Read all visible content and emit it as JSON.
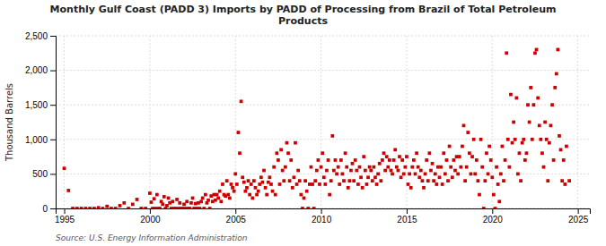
{
  "chart_data": {
    "type": "scatter",
    "title": "Monthly Gulf Coast (PADD 3) Imports by PADD of Processing from Brazil of Total Petroleum\nProducts",
    "ylabel": "Thousand Barrels",
    "annotations": [
      "Source: U.S. Energy Information Administration"
    ],
    "color": "#cc0000",
    "marker": "square",
    "grid": true,
    "xlim": [
      1994.5,
      2025.7
    ],
    "xticks": [
      1995,
      2000,
      2005,
      2010,
      2015,
      2020,
      2025
    ],
    "ylim": [
      0,
      2500
    ],
    "yticks": [
      0,
      500,
      {
        "value": 1000,
        "label": "1,000"
      },
      {
        "value": 1500,
        "label": "1,500"
      },
      {
        "value": 2000,
        "label": "2,000"
      },
      {
        "value": 2500,
        "label": "2,500"
      }
    ],
    "x": [
      1995.0,
      1995.25,
      1995.5,
      1995.75,
      1996.0,
      1996.25,
      1996.5,
      1996.75,
      1997.0,
      1997.25,
      1997.5,
      1997.75,
      1998.0,
      1998.25,
      1998.5,
      1998.75,
      1999.0,
      1999.25,
      1999.5,
      1999.75,
      2000.0,
      2000.083,
      2000.167,
      2000.25,
      2000.333,
      2000.417,
      2000.5,
      2000.583,
      2000.667,
      2000.75,
      2000.833,
      2000.917,
      2001.0,
      2001.083,
      2001.167,
      2001.25,
      2001.333,
      2001.417,
      2001.5,
      2001.583,
      2001.667,
      2001.75,
      2001.833,
      2001.917,
      2002.0,
      2002.083,
      2002.167,
      2002.25,
      2002.333,
      2002.417,
      2002.5,
      2002.583,
      2002.667,
      2002.75,
      2002.833,
      2002.917,
      2003.0,
      2003.083,
      2003.167,
      2003.25,
      2003.333,
      2003.417,
      2003.5,
      2003.583,
      2003.667,
      2003.75,
      2003.833,
      2003.917,
      2004.0,
      2004.083,
      2004.167,
      2004.25,
      2004.333,
      2004.417,
      2004.5,
      2004.583,
      2004.667,
      2004.75,
      2004.833,
      2004.917,
      2005.0,
      2005.083,
      2005.167,
      2005.25,
      2005.333,
      2005.417,
      2005.5,
      2005.583,
      2005.667,
      2005.75,
      2005.833,
      2005.917,
      2006.0,
      2006.083,
      2006.167,
      2006.25,
      2006.333,
      2006.417,
      2006.5,
      2006.583,
      2006.667,
      2006.75,
      2006.833,
      2006.917,
      2007.0,
      2007.083,
      2007.167,
      2007.25,
      2007.333,
      2007.417,
      2007.5,
      2007.583,
      2007.667,
      2007.75,
      2007.833,
      2007.917,
      2008.0,
      2008.083,
      2008.167,
      2008.25,
      2008.333,
      2008.417,
      2008.5,
      2008.583,
      2008.667,
      2008.75,
      2008.833,
      2008.917,
      2009.0,
      2009.083,
      2009.167,
      2009.25,
      2009.333,
      2009.417,
      2009.5,
      2009.583,
      2009.667,
      2009.75,
      2009.833,
      2009.917,
      2010.0,
      2010.083,
      2010.167,
      2010.25,
      2010.333,
      2010.417,
      2010.5,
      2010.583,
      2010.667,
      2010.75,
      2010.833,
      2010.917,
      2011.0,
      2011.083,
      2011.167,
      2011.25,
      2011.333,
      2011.417,
      2011.5,
      2011.583,
      2011.667,
      2011.75,
      2011.833,
      2011.917,
      2012.0,
      2012.083,
      2012.167,
      2012.25,
      2012.333,
      2012.417,
      2012.5,
      2012.583,
      2012.667,
      2012.75,
      2012.833,
      2012.917,
      2013.0,
      2013.083,
      2013.167,
      2013.25,
      2013.333,
      2013.417,
      2013.5,
      2013.583,
      2013.667,
      2013.75,
      2013.833,
      2013.917,
      2014.0,
      2014.083,
      2014.167,
      2014.25,
      2014.333,
      2014.417,
      2014.5,
      2014.583,
      2014.667,
      2014.75,
      2014.833,
      2014.917,
      2015.0,
      2015.083,
      2015.167,
      2015.25,
      2015.333,
      2015.417,
      2015.5,
      2015.583,
      2015.667,
      2015.75,
      2015.833,
      2015.917,
      2016.0,
      2016.083,
      2016.167,
      2016.25,
      2016.333,
      2016.417,
      2016.5,
      2016.583,
      2016.667,
      2016.75,
      2016.833,
      2016.917,
      2017.0,
      2017.083,
      2017.167,
      2017.25,
      2017.333,
      2017.417,
      2017.5,
      2017.583,
      2017.667,
      2017.75,
      2017.833,
      2017.917,
      2018.0,
      2018.083,
      2018.167,
      2018.25,
      2018.333,
      2018.417,
      2018.5,
      2018.583,
      2018.667,
      2018.75,
      2018.833,
      2018.917,
      2019.0,
      2019.083,
      2019.167,
      2019.25,
      2019.333,
      2019.417,
      2019.5,
      2019.583,
      2019.667,
      2019.75,
      2019.833,
      2019.917,
      2020.0,
      2020.083,
      2020.167,
      2020.25,
      2020.333,
      2020.417,
      2020.5,
      2020.583,
      2020.667,
      2020.75,
      2020.833,
      2020.917,
      2021.0,
      2021.083,
      2021.167,
      2021.25,
      2021.333,
      2021.417,
      2021.5,
      2021.583,
      2021.667,
      2021.75,
      2021.833,
      2021.917,
      2022.0,
      2022.083,
      2022.167,
      2022.25,
      2022.333,
      2022.417,
      2022.5,
      2022.583,
      2022.667,
      2022.75,
      2022.833,
      2022.917,
      2023.0,
      2023.083,
      2023.167,
      2023.25,
      2023.333,
      2023.417,
      2023.5,
      2023.583,
      2023.667,
      2023.75,
      2023.833,
      2023.917,
      2024.0,
      2024.083,
      2024.167,
      2024.25,
      2024.333,
      2024.5
    ],
    "values": [
      580,
      260,
      0,
      0,
      0,
      0,
      0,
      0,
      10,
      0,
      30,
      0,
      0,
      40,
      80,
      0,
      60,
      130,
      0,
      0,
      220,
      90,
      0,
      140,
      0,
      200,
      0,
      0,
      100,
      60,
      170,
      0,
      40,
      150,
      80,
      0,
      100,
      0,
      0,
      130,
      0,
      80,
      0,
      0,
      60,
      0,
      100,
      0,
      0,
      80,
      150,
      0,
      70,
      0,
      80,
      0,
      100,
      150,
      0,
      200,
      80,
      120,
      0,
      180,
      100,
      200,
      120,
      200,
      150,
      250,
      100,
      350,
      200,
      180,
      400,
      200,
      150,
      350,
      300,
      250,
      500,
      350,
      1100,
      800,
      1550,
      450,
      380,
      250,
      300,
      400,
      200,
      350,
      150,
      400,
      300,
      200,
      250,
      350,
      450,
      380,
      550,
      300,
      200,
      380,
      450,
      350,
      250,
      600,
      200,
      800,
      700,
      350,
      850,
      550,
      400,
      600,
      950,
      800,
      400,
      700,
      300,
      450,
      950,
      350,
      550,
      400,
      200,
      0,
      150,
      400,
      250,
      0,
      350,
      600,
      350,
      0,
      400,
      550,
      700,
      350,
      600,
      800,
      450,
      350,
      550,
      700,
      200,
      400,
      1050,
      550,
      700,
      500,
      600,
      350,
      700,
      500,
      400,
      800,
      600,
      300,
      400,
      550,
      650,
      400,
      700,
      550,
      350,
      600,
      450,
      300,
      750,
      550,
      350,
      450,
      600,
      550,
      400,
      600,
      450,
      350,
      500,
      650,
      400,
      700,
      800,
      550,
      750,
      600,
      700,
      550,
      500,
      700,
      850,
      600,
      550,
      750,
      450,
      700,
      500,
      600,
      750,
      350,
      500,
      300,
      600,
      700,
      500,
      800,
      600,
      450,
      550,
      400,
      300,
      500,
      700,
      400,
      800,
      550,
      650,
      400,
      500,
      350,
      600,
      450,
      600,
      350,
      800,
      500,
      700,
      400,
      900,
      600,
      450,
      700,
      550,
      750,
      500,
      750,
      600,
      900,
      1200,
      400,
      600,
      1100,
      800,
      500,
      750,
      1000,
      500,
      700,
      400,
      200,
      1000,
      600,
      0,
      400,
      800,
      500,
      900,
      700,
      450,
      200,
      0,
      600,
      350,
      100,
      500,
      900,
      400,
      700,
      2250,
      1000,
      600,
      1650,
      950,
      1250,
      1000,
      1600,
      500,
      800,
      400,
      950,
      1000,
      700,
      800,
      1500,
      1250,
      1750,
      1000,
      1500,
      2250,
      2300,
      1600,
      1200,
      1000,
      800,
      600,
      1250,
      1000,
      400,
      950,
      1200,
      1500,
      700,
      1750,
      1950,
      2300,
      1050,
      850,
      400,
      700,
      350,
      900,
      400
    ]
  }
}
